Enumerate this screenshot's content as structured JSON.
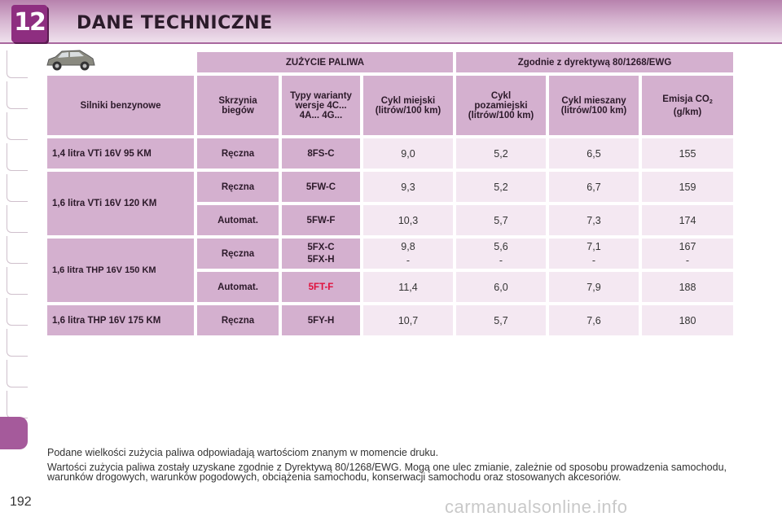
{
  "header": {
    "chapter": "12",
    "title": "DANE TECHNICZNE"
  },
  "table": {
    "group_left": "ZUŻYCIE PALIWA",
    "group_right": "Zgodnie z dyrektywą 80/1268/EWG",
    "headers": {
      "engine": "Silniki benzynowe",
      "gearbox": "Skrzynia biegów",
      "variants": "Typy warianty wersje 4C... 4A... 4G...",
      "urban": "Cykl miejski",
      "urban_unit": "(litrów/100 km)",
      "extra": "Cykl pozamiejski",
      "extra_unit": "(litrów/100 km)",
      "combined": "Cykl mieszany",
      "combined_unit": "(litrów/100 km)",
      "co2": "Emisja CO",
      "co2_sub": "2",
      "co2_unit": "(g/km)"
    },
    "rows": [
      {
        "engine": "1,4 litra VTi 16V 95 KM",
        "gearbox": "Ręczna",
        "variant": "8FS-C",
        "urban": "9,0",
        "extra": "5,2",
        "combined": "6,5",
        "co2": "155"
      },
      {
        "engine": "1,6 litra VTi 16V 120 KM",
        "gearbox": "Ręczna",
        "variant": "5FW-C",
        "urban": "9,3",
        "extra": "5,2",
        "combined": "6,7",
        "co2": "159"
      },
      {
        "gearbox": "Automat.",
        "variant": "5FW-F",
        "urban": "10,3",
        "extra": "5,7",
        "combined": "7,3",
        "co2": "174"
      },
      {
        "engine": "1,6 litra THP 16V 150 KM",
        "gearbox": "Ręczna",
        "variant": "5FX-C",
        "variant2": "5FX-H",
        "urban": "9,8",
        "urban2": "-",
        "extra": "5,6",
        "extra2": "-",
        "combined": "7,1",
        "combined2": "-",
        "co2": "167",
        "co22": "-"
      },
      {
        "gearbox": "Automat.",
        "variant": "5FT-F",
        "variant_color": "#e0103c",
        "urban": "11,4",
        "extra": "6,0",
        "combined": "7,9",
        "co2": "188"
      },
      {
        "engine": "1,6 litra THP 16V 175 KM",
        "gearbox": "Ręczna",
        "variant": "5FY-H",
        "urban": "10,7",
        "extra": "5,7",
        "combined": "7,6",
        "co2": "180"
      }
    ]
  },
  "notes": {
    "line1": "Podane wielkości zużycia paliwa odpowiadają wartościom znanym w momencie druku.",
    "line2": "Wartości zużycia paliwa zostały uzyskane zgodnie z Dyrektywą 80/1268/EWG. Mogą one ulec zmianie, zależnie od sposobu prowadzenia samochodu, warunków drogowych, warunków pogodowych, obciążenia samochodu, konserwacji samochodu oraz stosowanych akcesoriów."
  },
  "page_number": "192",
  "watermark": "carmanualsonline.info",
  "colors": {
    "accent": "#8e2e80",
    "header_cell": "#d4b0cf",
    "value_cell": "#f4e8f2",
    "highlight": "#e0103c"
  },
  "icons": {
    "car": "car-icon"
  }
}
